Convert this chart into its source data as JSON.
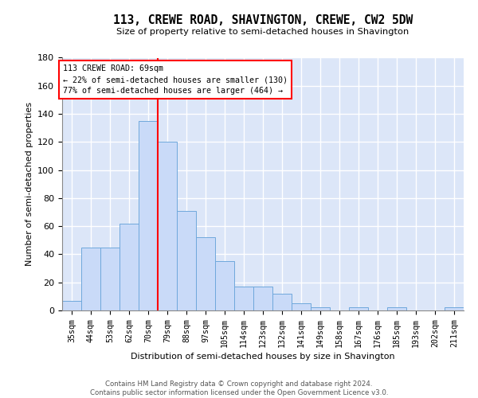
{
  "title": "113, CREWE ROAD, SHAVINGTON, CREWE, CW2 5DW",
  "subtitle": "Size of property relative to semi-detached houses in Shavington",
  "xlabel": "Distribution of semi-detached houses by size in Shavington",
  "ylabel": "Number of semi-detached properties",
  "bar_color": "#c9daf8",
  "bar_edge_color": "#6fa8dc",
  "bg_color": "#dce6f8",
  "grid_color": "white",
  "categories": [
    "35sqm",
    "44sqm",
    "53sqm",
    "62sqm",
    "70sqm",
    "79sqm",
    "88sqm",
    "97sqm",
    "105sqm",
    "114sqm",
    "123sqm",
    "132sqm",
    "141sqm",
    "149sqm",
    "158sqm",
    "167sqm",
    "176sqm",
    "185sqm",
    "193sqm",
    "202sqm",
    "211sqm"
  ],
  "values": [
    7,
    45,
    45,
    62,
    135,
    120,
    71,
    52,
    35,
    17,
    17,
    12,
    5,
    2,
    0,
    2,
    0,
    2,
    0,
    0,
    2
  ],
  "ylim": [
    0,
    180
  ],
  "yticks": [
    0,
    20,
    40,
    60,
    80,
    100,
    120,
    140,
    160,
    180
  ],
  "vline_x": 4.5,
  "vline_color": "red",
  "annotation_title": "113 CREWE ROAD: 69sqm",
  "annotation_line1": "← 22% of semi-detached houses are smaller (130)",
  "annotation_line2": "77% of semi-detached houses are larger (464) →",
  "footer_line1": "Contains HM Land Registry data © Crown copyright and database right 2024.",
  "footer_line2": "Contains public sector information licensed under the Open Government Licence v3.0."
}
